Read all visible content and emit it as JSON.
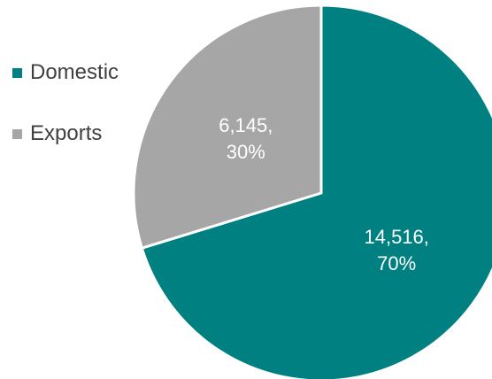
{
  "chart_data": {
    "type": "pie",
    "title": "",
    "categories": [
      "Domestic",
      "Exports"
    ],
    "values": [
      14516,
      6145
    ],
    "percent_labels": [
      "70%",
      "30%"
    ],
    "value_labels": [
      "14,516,",
      "6,145,"
    ],
    "colors": [
      "#008080",
      "#A6A6A6"
    ],
    "start_angle_deg": 0,
    "direction": "clockwise",
    "legend_position": "left",
    "slice_border_color": "#ffffff"
  }
}
